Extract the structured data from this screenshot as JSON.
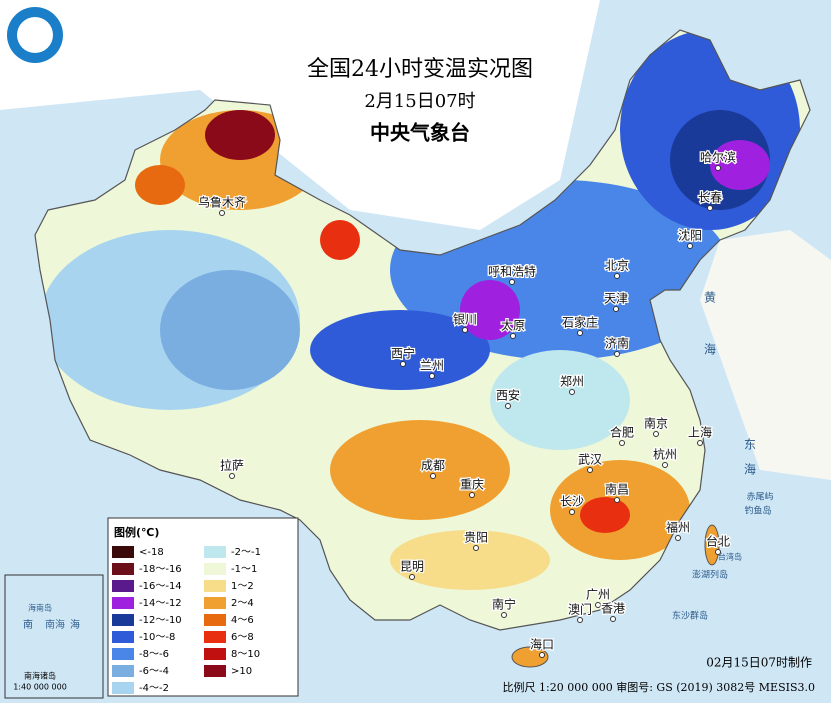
{
  "header": {
    "title": "全国24小时变温实况图",
    "subtitle": "2月15日07时",
    "agency": "中央气象台"
  },
  "legend": {
    "title": "图例(℃)",
    "items": [
      {
        "label": "<-18",
        "color": "#3a0a0a"
      },
      {
        "label": "-18～-16",
        "color": "#6b0f1a"
      },
      {
        "label": "-16～-14",
        "color": "#5a1a8c"
      },
      {
        "label": "-14～-12",
        "color": "#a020e0"
      },
      {
        "label": "-12～-10",
        "color": "#1a3a9a"
      },
      {
        "label": "-10～-8",
        "color": "#2f5ad8"
      },
      {
        "label": "-8～-6",
        "color": "#4a86e8"
      },
      {
        "label": "-6～-4",
        "color": "#7aaee0"
      },
      {
        "label": "-4～-2",
        "color": "#a8d4f0"
      },
      {
        "label": "-2～-1",
        "color": "#bfe8ee"
      },
      {
        "label": "-1～1",
        "color": "#eef8d8"
      },
      {
        "label": "1～2",
        "color": "#f7dc8a"
      },
      {
        "label": "2～4",
        "color": "#f0a030"
      },
      {
        "label": "4～6",
        "color": "#e86a10"
      },
      {
        "label": "6～8",
        "color": "#e83010"
      },
      {
        "label": "8～10",
        "color": "#c01010"
      },
      {
        "label": ">10",
        "color": "#8b0a1a"
      }
    ]
  },
  "cities": [
    "乌鲁木齐",
    "哈尔滨",
    "长春",
    "沈阳",
    "呼和浩特",
    "北京",
    "天津",
    "石家庄",
    "银川",
    "太原",
    "济南",
    "西宁",
    "兰州",
    "郑州",
    "西安",
    "合肥",
    "南京",
    "上海",
    "武汉",
    "杭州",
    "成都",
    "重庆",
    "拉萨",
    "长沙",
    "南昌",
    "福州",
    "台北",
    "贵阳",
    "昆明",
    "广州",
    "澳门",
    "香港",
    "南宁",
    "海口"
  ],
  "places": [
    "赤尾屿",
    "钓鱼岛",
    "澎湖列岛",
    "东沙群岛",
    "台湾岛",
    "海南岛",
    "黄",
    "海",
    "东",
    "海",
    "南",
    "海"
  ],
  "inset": {
    "title": "南海诸岛",
    "scale": "1:40 000 000",
    "sea": "南海"
  },
  "footer": {
    "made": "02月15日07时制作",
    "note": "比例尺 1:20 000 000 审图号: GS (2019) 3082号 MESIS3.0"
  }
}
